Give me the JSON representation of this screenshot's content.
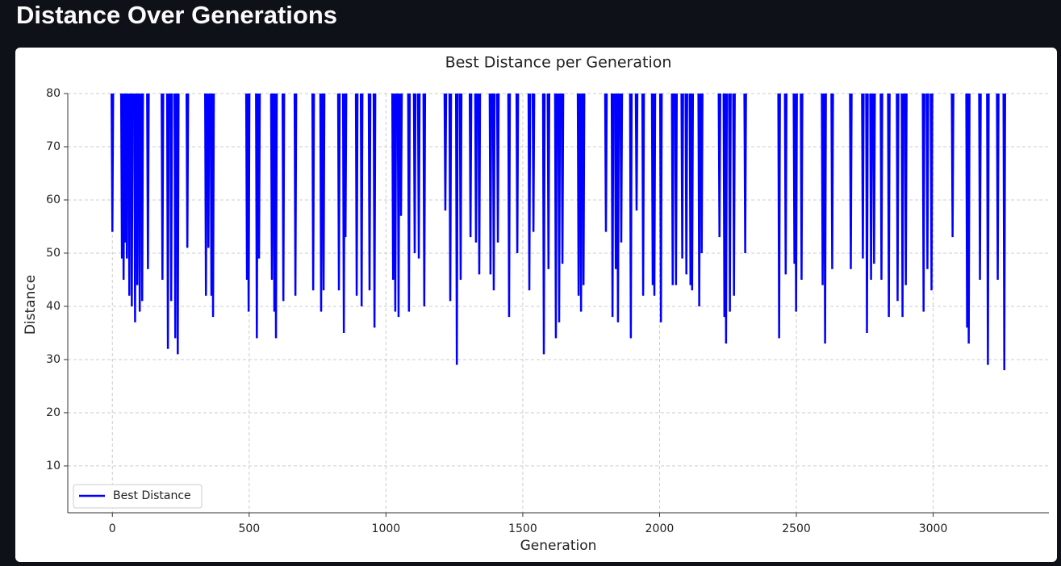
{
  "header": {
    "title": "Distance Over Generations"
  },
  "chart_data": {
    "type": "line",
    "title": "Best Distance per Generation",
    "xlabel": "Generation",
    "ylabel": "Distance",
    "x": [
      0,
      35,
      41,
      47,
      53,
      62,
      71,
      83,
      91,
      100,
      109,
      130,
      183,
      203,
      215,
      230,
      239,
      274,
      342,
      351,
      362,
      368,
      492,
      498,
      528,
      536,
      583,
      592,
      598,
      625,
      669,
      734,
      763,
      772,
      828,
      846,
      852,
      893,
      911,
      940,
      958,
      1026,
      1034,
      1046,
      1055,
      1084,
      1105,
      1120,
      1140,
      1217,
      1235,
      1259,
      1273,
      1309,
      1329,
      1341,
      1382,
      1394,
      1409,
      1450,
      1480,
      1524,
      1539,
      1577,
      1594,
      1621,
      1633,
      1645,
      1704,
      1713,
      1722,
      1804,
      1828,
      1840,
      1848,
      1860,
      1895,
      1916,
      1940,
      1975,
      1981,
      2005,
      2048,
      2060,
      2083,
      2098,
      2113,
      2119,
      2145,
      2154,
      2219,
      2237,
      2243,
      2257,
      2272,
      2313,
      2437,
      2461,
      2493,
      2499,
      2519,
      2596,
      2605,
      2631,
      2699,
      2743,
      2758,
      2773,
      2784,
      2811,
      2838,
      2870,
      2888,
      2900,
      2965,
      2979,
      2994,
      3071,
      3124,
      3130,
      3171,
      3200,
      3236,
      3260
    ],
    "series": [
      {
        "name": "Best Distance",
        "color": "#0000ff",
        "values": [
          54,
          49,
          45,
          52,
          49,
          42,
          40,
          37,
          44,
          39,
          41,
          47,
          45,
          32,
          41,
          34,
          31,
          51,
          42,
          51,
          42,
          38,
          45,
          39,
          34,
          49,
          45,
          39,
          34,
          41,
          42,
          43,
          39,
          43,
          43,
          35,
          53,
          42,
          40,
          43,
          36,
          45,
          39,
          38,
          57,
          39,
          50,
          49,
          40,
          58,
          41,
          29,
          45,
          53,
          52,
          46,
          46,
          43,
          52,
          38,
          50,
          43,
          54,
          31,
          47,
          34,
          37,
          48,
          42,
          39,
          44,
          54,
          38,
          47,
          37,
          52,
          34,
          58,
          42,
          44,
          42,
          37,
          44,
          44,
          49,
          46,
          44,
          43,
          40,
          50,
          53,
          38,
          33,
          39,
          42,
          50,
          34,
          46,
          48,
          39,
          45,
          44,
          33,
          47,
          47,
          49,
          35,
          45,
          48,
          45,
          38,
          41,
          38,
          44,
          39,
          47,
          43,
          53,
          36,
          33,
          45,
          29,
          45,
          28
        ]
      }
    ],
    "xlim": [
      -163,
      3423
    ],
    "ylim": [
      1.2,
      80
    ],
    "xticks": [
      0,
      500,
      1000,
      1500,
      2000,
      2500,
      3000
    ],
    "yticks": [
      10,
      20,
      30,
      40,
      50,
      60,
      70,
      80
    ],
    "grid": true,
    "legend": "lower left"
  }
}
